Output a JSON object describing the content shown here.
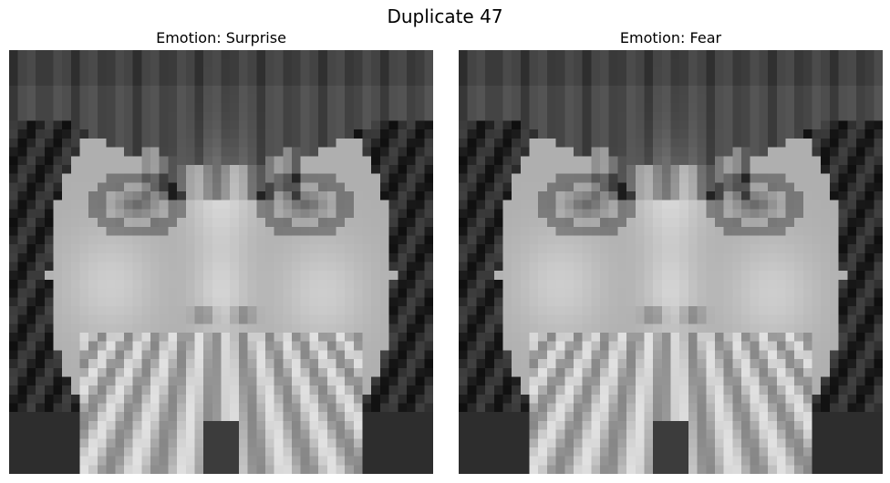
{
  "figure": {
    "title": "Duplicate 47"
  },
  "panels": [
    {
      "title": "Emotion: Surprise"
    },
    {
      "title": "Emotion: Fear"
    }
  ]
}
